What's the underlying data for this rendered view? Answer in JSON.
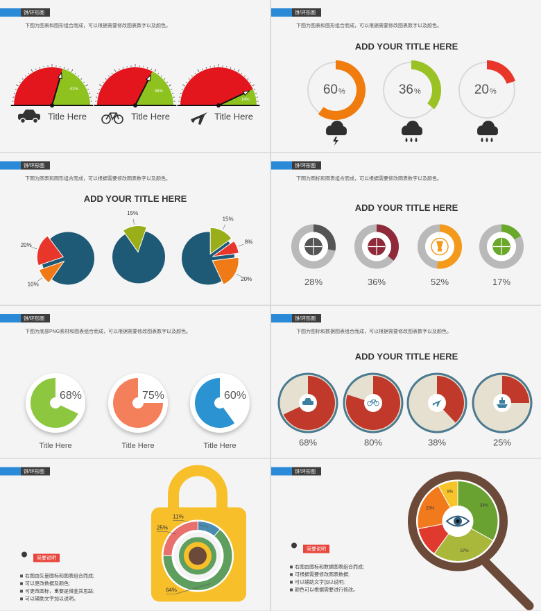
{
  "slides": [
    {
      "tag": "饼/环形图",
      "description": "下图为图表和图形组合而成，可以根据需要修改图表数字以及颜色。",
      "gauges": {
        "labels": [
          "Title Here",
          "Title Here",
          "Title Here"
        ],
        "values": [
          41,
          35,
          14
        ],
        "value_labels": [
          "41%",
          "35%",
          "14%"
        ],
        "colors": [
          "#8dc21f",
          "#e3161e"
        ]
      }
    },
    {
      "tag": "饼/环形图",
      "description": "下图为图表和图形组合而成，可以根据需要修改图表数字以及颜色。",
      "title": "ADD YOUR TITLE HERE",
      "donuts": {
        "values": [
          60,
          36,
          20
        ],
        "unit": "%",
        "colors": [
          "#f07c0e",
          "#9ac225",
          "#e8362a"
        ]
      }
    },
    {
      "tag": "饼/环形图",
      "description": "下图为图表和图形组合而成，可以根据需要修改图表数字以及颜色。",
      "title": "ADD YOUR TITLE HERE",
      "pies": [
        {
          "values": [
            20,
            10
          ],
          "value_labels": [
            "20%",
            "10%"
          ],
          "colors": [
            "#e8362a",
            "#ef7a16"
          ]
        },
        {
          "values": [
            15
          ],
          "value_labels": [
            "15%"
          ],
          "colors": [
            "#9aae1a"
          ]
        },
        {
          "values": [
            15,
            8,
            20
          ],
          "value_labels": [
            "15%",
            "8%",
            "20%"
          ],
          "colors": [
            "#9aae1a",
            "#e8362a",
            "#ef7a16"
          ]
        }
      ],
      "base_color": "#1e5a76"
    },
    {
      "tag": "饼/环形图",
      "description": "下图为图标和图表组合而成，可以根据需要修改图表数字以及颜色。",
      "title": "ADD YOUR TITLE HERE",
      "donuts": {
        "values": [
          28,
          36,
          52,
          17
        ],
        "value_labels": [
          "28%",
          "36%",
          "52%",
          "17%"
        ],
        "colors": [
          "#555555",
          "#8e2a3a",
          "#f39a1c",
          "#6aa82a"
        ]
      }
    },
    {
      "tag": "饼/环形图",
      "description": "下图为底部PNG素材和图表组合而成，可以根据需要修改图表数字以及颜色。",
      "pies": {
        "values": [
          68,
          75,
          60
        ],
        "value_labels": [
          "68%",
          "75%",
          "60%"
        ],
        "labels": [
          "Title Here",
          "Title Here",
          "Title Here"
        ],
        "colors": [
          "#8dc63f",
          "#f47f5b",
          "#2b93d1"
        ]
      }
    },
    {
      "tag": "饼/环形图",
      "description": "下图为图标和数据图表组合而成，可以根据需要修改图表数字以及颜色。",
      "title": "ADD YOUR TITLE HERE",
      "pies": {
        "values": [
          68,
          80,
          38,
          25
        ],
        "value_labels": [
          "68%",
          "80%",
          "38%",
          "25%"
        ],
        "color": "#c0392b"
      }
    },
    {
      "tag": "饼/环形图",
      "note": {
        "heading": "简要说明",
        "items": [
          "右图由矢量图标和图表组合而成;",
          "可以更改数据及颜色;",
          "可更改图标，重要是借鉴其思路;",
          "可以辅助文字加以说明。"
        ]
      },
      "ring": {
        "values": [
          11,
          25,
          64
        ],
        "value_labels": [
          "11%",
          "25%",
          "64%"
        ],
        "colors": [
          "#4a8bb0",
          "#e8716e",
          "#5e9e5e"
        ]
      }
    },
    {
      "tag": "饼/环形图",
      "note": {
        "heading": "简要说明",
        "items": [
          "右图由图标和数据图表组合而成;",
          "可根据需要修改图表数据;",
          "可以辅助文字加以说明;",
          "颜色可以根据需要进行修改。"
        ]
      },
      "ring": {
        "values": [
          33,
          27,
          12,
          20,
          8
        ],
        "value_labels": [
          "33%",
          "27%",
          null,
          "20%",
          "8%"
        ],
        "colors": [
          "#6aa232",
          "#a9b83a",
          "#e03a2e",
          "#f07a1c",
          "#f7c52a"
        ]
      }
    }
  ]
}
